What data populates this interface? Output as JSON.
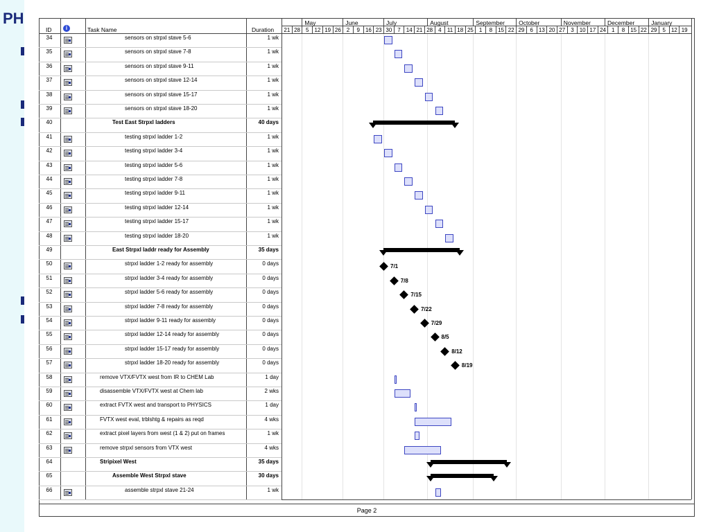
{
  "background": {
    "title": "PH"
  },
  "header": {
    "id_label": "ID",
    "info_icon": "info-icon",
    "task_name_label": "Task Name",
    "duration_label": "Duration",
    "months": [
      "May",
      "June",
      "July",
      "August",
      "September",
      "October",
      "November",
      "December",
      "January"
    ],
    "days": [
      "21",
      "28",
      "5",
      "12",
      "19",
      "26",
      "2",
      "9",
      "16",
      "23",
      "30",
      "7",
      "14",
      "21",
      "28",
      "4",
      "11",
      "18",
      "25",
      "1",
      "8",
      "15",
      "22",
      "29",
      "6",
      "13",
      "20",
      "27",
      "3",
      "10",
      "17",
      "24",
      "1",
      "8",
      "15",
      "22",
      "29",
      "5",
      "12",
      "19"
    ]
  },
  "rows": [
    {
      "id": "34",
      "name": "sensors on strpxl stave 5-6",
      "duration": "1 wk",
      "bold": false,
      "indent": 2,
      "icon": true
    },
    {
      "id": "35",
      "name": "sensors on strpxl stave 7-8",
      "duration": "1 wk",
      "bold": false,
      "indent": 2,
      "icon": true
    },
    {
      "id": "36",
      "name": "sensors on strpxl stave 9-11",
      "duration": "1 wk",
      "bold": false,
      "indent": 2,
      "icon": true
    },
    {
      "id": "37",
      "name": "sensors on strpxl stave 12-14",
      "duration": "1 wk",
      "bold": false,
      "indent": 2,
      "icon": true
    },
    {
      "id": "38",
      "name": "sensors on strpxl stave 15-17",
      "duration": "1 wk",
      "bold": false,
      "indent": 2,
      "icon": true
    },
    {
      "id": "39",
      "name": "sensors on strpxl stave 18-20",
      "duration": "1 wk",
      "bold": false,
      "indent": 2,
      "icon": true
    },
    {
      "id": "40",
      "name": "Test East Strpxl ladders",
      "duration": "40 days",
      "bold": true,
      "indent": 1,
      "icon": false
    },
    {
      "id": "41",
      "name": "testing strpxl ladder 1-2",
      "duration": "1 wk",
      "bold": false,
      "indent": 2,
      "icon": true
    },
    {
      "id": "42",
      "name": "testing strpxl ladder 3-4",
      "duration": "1 wk",
      "bold": false,
      "indent": 2,
      "icon": true
    },
    {
      "id": "43",
      "name": "testing strpxl ladder 5-6",
      "duration": "1 wk",
      "bold": false,
      "indent": 2,
      "icon": true
    },
    {
      "id": "44",
      "name": "testing strpxl ladder 7-8",
      "duration": "1 wk",
      "bold": false,
      "indent": 2,
      "icon": true
    },
    {
      "id": "45",
      "name": "testing strpxl ladder 9-11",
      "duration": "1 wk",
      "bold": false,
      "indent": 2,
      "icon": true
    },
    {
      "id": "46",
      "name": "testing strpxl ladder 12-14",
      "duration": "1 wk",
      "bold": false,
      "indent": 2,
      "icon": true
    },
    {
      "id": "47",
      "name": "testing strpxl ladder 15-17",
      "duration": "1 wk",
      "bold": false,
      "indent": 2,
      "icon": true
    },
    {
      "id": "48",
      "name": "testing strpxl ladder 18-20",
      "duration": "1 wk",
      "bold": false,
      "indent": 2,
      "icon": true
    },
    {
      "id": "49",
      "name": "East Strpxl laddr ready for Assembly",
      "duration": "35 days",
      "bold": true,
      "indent": 1,
      "icon": false
    },
    {
      "id": "50",
      "name": "strpxl ladder 1-2 ready for assembly",
      "duration": "0 days",
      "bold": false,
      "indent": 2,
      "icon": true
    },
    {
      "id": "51",
      "name": "strpxl ladder 3-4  ready for assembly",
      "duration": "0 days",
      "bold": false,
      "indent": 2,
      "icon": true
    },
    {
      "id": "52",
      "name": "strpxl ladder 5-6 ready for assembly",
      "duration": "0 days",
      "bold": false,
      "indent": 2,
      "icon": true
    },
    {
      "id": "53",
      "name": "strpxl ladder 7-8 ready for assembly",
      "duration": "0 days",
      "bold": false,
      "indent": 2,
      "icon": true
    },
    {
      "id": "54",
      "name": "strpxl ladder 9-11 ready for assembly",
      "duration": "0 days",
      "bold": false,
      "indent": 2,
      "icon": true
    },
    {
      "id": "55",
      "name": "strpxl ladder 12-14 ready for assembly",
      "duration": "0 days",
      "bold": false,
      "indent": 2,
      "icon": true
    },
    {
      "id": "56",
      "name": "strpxl ladder 15-17 ready for assembly",
      "duration": "0 days",
      "bold": false,
      "indent": 2,
      "icon": true
    },
    {
      "id": "57",
      "name": "strpxl ladder 18-20 ready for assembly",
      "duration": "0 days",
      "bold": false,
      "indent": 2,
      "icon": true
    },
    {
      "id": "58",
      "name": "remove VTX/FVTX west from IR to CHEM Lab",
      "duration": "1 day",
      "bold": false,
      "indent": 0,
      "icon": true
    },
    {
      "id": "59",
      "name": "disassemble VTX/FVTX west at Chem lab",
      "duration": "2 wks",
      "bold": false,
      "indent": 0,
      "icon": true
    },
    {
      "id": "60",
      "name": "extract FVTX west and transport to PHYSICS",
      "duration": "1 day",
      "bold": false,
      "indent": 0,
      "icon": true
    },
    {
      "id": "61",
      "name": "FVTX west eval, trblshtg & repairs as reqd",
      "duration": "4 wks",
      "bold": false,
      "indent": 0,
      "icon": true
    },
    {
      "id": "62",
      "name": "extract pixel layers from west (1 & 2) put on frames",
      "duration": "1 wk",
      "bold": false,
      "indent": 0,
      "icon": true
    },
    {
      "id": "63",
      "name": "remove strpxl sensors from VTX west",
      "duration": "4 wks",
      "bold": false,
      "indent": 0,
      "icon": true
    },
    {
      "id": "64",
      "name": "Stripixel West",
      "duration": "35 days",
      "bold": true,
      "indent": 0,
      "icon": false
    },
    {
      "id": "65",
      "name": "Assemble West Strpxl stave",
      "duration": "30 days",
      "bold": true,
      "indent": 1,
      "icon": false
    },
    {
      "id": "66",
      "name": "assemble strpxl stave 21-24",
      "duration": "1 wk",
      "bold": false,
      "indent": 2,
      "icon": true
    }
  ],
  "milestones": [
    "7/1",
    "7/8",
    "7/15",
    "7/22",
    "7/29",
    "8/5",
    "8/12",
    "8/19"
  ],
  "footer": {
    "page_label": "Page 2"
  },
  "chart_data": {
    "type": "gantt",
    "timescale": {
      "start": "May 21",
      "unit": "week"
    },
    "tasks": [
      {
        "id": "34",
        "kind": "task",
        "start_week": 10,
        "weeks": 1
      },
      {
        "id": "35",
        "kind": "task",
        "start_week": 11,
        "weeks": 1
      },
      {
        "id": "36",
        "kind": "task",
        "start_week": 12,
        "weeks": 1
      },
      {
        "id": "37",
        "kind": "task",
        "start_week": 13,
        "weeks": 1
      },
      {
        "id": "38",
        "kind": "task",
        "start_week": 14,
        "weeks": 1
      },
      {
        "id": "39",
        "kind": "task",
        "start_week": 15,
        "weeks": 1
      },
      {
        "id": "40",
        "kind": "summary",
        "start_week": 9,
        "weeks": 8
      },
      {
        "id": "41",
        "kind": "task",
        "start_week": 9,
        "weeks": 1
      },
      {
        "id": "42",
        "kind": "task",
        "start_week": 10,
        "weeks": 1
      },
      {
        "id": "43",
        "kind": "task",
        "start_week": 11,
        "weeks": 1
      },
      {
        "id": "44",
        "kind": "task",
        "start_week": 12,
        "weeks": 1
      },
      {
        "id": "45",
        "kind": "task",
        "start_week": 13,
        "weeks": 1
      },
      {
        "id": "46",
        "kind": "task",
        "start_week": 14,
        "weeks": 1
      },
      {
        "id": "47",
        "kind": "task",
        "start_week": 15,
        "weeks": 1
      },
      {
        "id": "48",
        "kind": "task",
        "start_week": 16,
        "weeks": 1
      },
      {
        "id": "49",
        "kind": "summary",
        "start_week": 10,
        "weeks": 7.5
      },
      {
        "id": "50",
        "kind": "milestone",
        "start_week": 10
      },
      {
        "id": "51",
        "kind": "milestone",
        "start_week": 11
      },
      {
        "id": "52",
        "kind": "milestone",
        "start_week": 12
      },
      {
        "id": "53",
        "kind": "milestone",
        "start_week": 13
      },
      {
        "id": "54",
        "kind": "milestone",
        "start_week": 14
      },
      {
        "id": "55",
        "kind": "milestone",
        "start_week": 15
      },
      {
        "id": "56",
        "kind": "milestone",
        "start_week": 16
      },
      {
        "id": "57",
        "kind": "milestone",
        "start_week": 17
      },
      {
        "id": "58",
        "kind": "task",
        "start_week": 11,
        "weeks": 0.2
      },
      {
        "id": "59",
        "kind": "task",
        "start_week": 11,
        "weeks": 1.8
      },
      {
        "id": "60",
        "kind": "task",
        "start_week": 13,
        "weeks": 0.2
      },
      {
        "id": "61",
        "kind": "task",
        "start_week": 13,
        "weeks": 3.8
      },
      {
        "id": "62",
        "kind": "task",
        "start_week": 13,
        "weeks": 0.7
      },
      {
        "id": "63",
        "kind": "task",
        "start_week": 12,
        "weeks": 3.8
      },
      {
        "id": "64",
        "kind": "summary",
        "start_week": 14.6,
        "weeks": 7.5
      },
      {
        "id": "65",
        "kind": "summary",
        "start_week": 14.6,
        "weeks": 6.2
      },
      {
        "id": "66",
        "kind": "task",
        "start_week": 15,
        "weeks": 0.8
      }
    ]
  }
}
